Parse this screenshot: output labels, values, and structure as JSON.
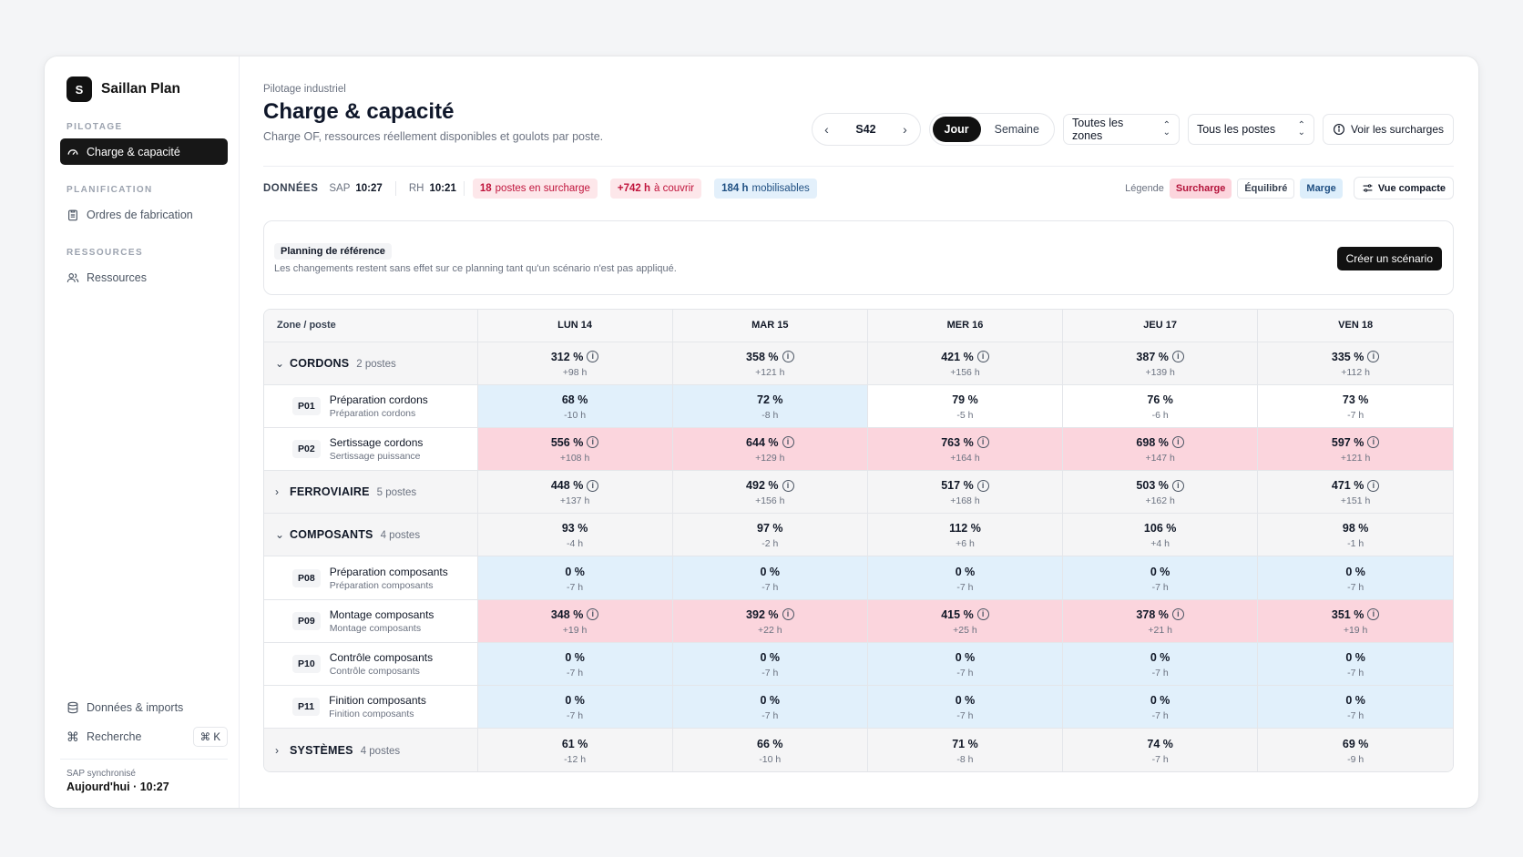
{
  "brand": {
    "logo": "S",
    "name": "Saillan Plan"
  },
  "sidebar": {
    "sections": [
      {
        "title": "PILOTAGE",
        "items": [
          {
            "label": "Charge & capacité",
            "icon": "gauge-icon",
            "active": true
          }
        ]
      },
      {
        "title": "PLANIFICATION",
        "items": [
          {
            "label": "Ordres de fabrication",
            "icon": "clipboard-icon"
          }
        ]
      },
      {
        "title": "RESSOURCES",
        "items": [
          {
            "label": "Ressources",
            "icon": "users-icon"
          }
        ]
      }
    ],
    "bottom": {
      "data_label": "Données & imports",
      "search_label": "Recherche",
      "search_shortcut": "⌘ K",
      "sync_label": "SAP synchronisé",
      "sync_value": "Aujourd'hui · 10:27"
    }
  },
  "header": {
    "breadcrumb": "Pilotage industriel",
    "title": "Charge & capacité",
    "subtitle": "Charge OF, ressources réellement disponibles et goulots par poste."
  },
  "toolbar": {
    "week": "S42",
    "view_day": "Jour",
    "view_week": "Semaine",
    "zones_select": "Toutes les zones",
    "posts_select": "Tous les postes",
    "overloads_button": "Voir les surcharges"
  },
  "infobar": {
    "data_label": "DONNÉES",
    "sap_label": "SAP",
    "sap_time": "10:27",
    "rh_label": "RH",
    "rh_time": "10:21",
    "chip1_num": "18",
    "chip1_text": "postes en surcharge",
    "chip2_num": "+742 h",
    "chip2_text": "à couvrir",
    "chip3_num": "184 h",
    "chip3_text": "mobilisables",
    "legend_label": "Légende",
    "legend_overload": "Surcharge",
    "legend_balanced": "Équilibré",
    "legend_margin": "Marge",
    "compact_button": "Vue compacte"
  },
  "reference": {
    "badge": "Planning de référence",
    "text": "Les changements restent sans effet sur ce planning tant qu'un scénario n'est pas appliqué.",
    "button": "Créer un scénario"
  },
  "table": {
    "zone_header": "Zone / poste",
    "days": [
      "LUN 14",
      "MAR 15",
      "MER 16",
      "JEU 17",
      "VEN 18"
    ],
    "rows": [
      {
        "type": "group",
        "expanded": true,
        "name": "CORDONS",
        "count": "2 postes",
        "cells": [
          [
            "312 %",
            "+98 h",
            "g",
            true
          ],
          [
            "358 %",
            "+121 h",
            "g",
            true
          ],
          [
            "421 %",
            "+156 h",
            "g",
            true
          ],
          [
            "387 %",
            "+139 h",
            "g",
            true
          ],
          [
            "335 %",
            "+112 h",
            "g",
            true
          ]
        ]
      },
      {
        "type": "post",
        "code": "P01",
        "title": "Préparation cordons",
        "sub": "Préparation cordons",
        "cells": [
          [
            "68 %",
            "-10 h",
            "blue",
            false
          ],
          [
            "72 %",
            "-8 h",
            "blue",
            false
          ],
          [
            "79 %",
            "-5 h",
            "white",
            false
          ],
          [
            "76 %",
            "-6 h",
            "white",
            false
          ],
          [
            "73 %",
            "-7 h",
            "white",
            false
          ]
        ]
      },
      {
        "type": "post",
        "code": "P02",
        "title": "Sertissage cordons",
        "sub": "Sertissage puissance",
        "cells": [
          [
            "556 %",
            "+108 h",
            "red",
            true
          ],
          [
            "644 %",
            "+129 h",
            "red",
            true
          ],
          [
            "763 %",
            "+164 h",
            "red",
            true
          ],
          [
            "698 %",
            "+147 h",
            "red",
            true
          ],
          [
            "597 %",
            "+121 h",
            "red",
            true
          ]
        ]
      },
      {
        "type": "group",
        "expanded": false,
        "name": "FERROVIAIRE",
        "count": "5 postes",
        "cells": [
          [
            "448 %",
            "+137 h",
            "g",
            true
          ],
          [
            "492 %",
            "+156 h",
            "g",
            true
          ],
          [
            "517 %",
            "+168 h",
            "g",
            true
          ],
          [
            "503 %",
            "+162 h",
            "g",
            true
          ],
          [
            "471 %",
            "+151 h",
            "g",
            true
          ]
        ]
      },
      {
        "type": "group",
        "expanded": true,
        "name": "COMPOSANTS",
        "count": "4 postes",
        "cells": [
          [
            "93 %",
            "-4 h",
            "g",
            false
          ],
          [
            "97 %",
            "-2 h",
            "g",
            false
          ],
          [
            "112 %",
            "+6 h",
            "g",
            false
          ],
          [
            "106 %",
            "+4 h",
            "g",
            false
          ],
          [
            "98 %",
            "-1 h",
            "g",
            false
          ]
        ]
      },
      {
        "type": "post",
        "code": "P08",
        "title": "Préparation composants",
        "sub": "Préparation composants",
        "cells": [
          [
            "0 %",
            "-7 h",
            "blue",
            false
          ],
          [
            "0 %",
            "-7 h",
            "blue",
            false
          ],
          [
            "0 %",
            "-7 h",
            "blue",
            false
          ],
          [
            "0 %",
            "-7 h",
            "blue",
            false
          ],
          [
            "0 %",
            "-7 h",
            "blue",
            false
          ]
        ]
      },
      {
        "type": "post",
        "code": "P09",
        "title": "Montage composants",
        "sub": "Montage composants",
        "cells": [
          [
            "348 %",
            "+19 h",
            "red",
            true
          ],
          [
            "392 %",
            "+22 h",
            "red",
            true
          ],
          [
            "415 %",
            "+25 h",
            "red",
            true
          ],
          [
            "378 %",
            "+21 h",
            "red",
            true
          ],
          [
            "351 %",
            "+19 h",
            "red",
            true
          ]
        ]
      },
      {
        "type": "post",
        "code": "P10",
        "title": "Contrôle composants",
        "sub": "Contrôle composants",
        "cells": [
          [
            "0 %",
            "-7 h",
            "blue",
            false
          ],
          [
            "0 %",
            "-7 h",
            "blue",
            false
          ],
          [
            "0 %",
            "-7 h",
            "blue",
            false
          ],
          [
            "0 %",
            "-7 h",
            "blue",
            false
          ],
          [
            "0 %",
            "-7 h",
            "blue",
            false
          ]
        ]
      },
      {
        "type": "post",
        "code": "P11",
        "title": "Finition composants",
        "sub": "Finition composants",
        "cells": [
          [
            "0 %",
            "-7 h",
            "blue",
            false
          ],
          [
            "0 %",
            "-7 h",
            "blue",
            false
          ],
          [
            "0 %",
            "-7 h",
            "blue",
            false
          ],
          [
            "0 %",
            "-7 h",
            "blue",
            false
          ],
          [
            "0 %",
            "-7 h",
            "blue",
            false
          ]
        ]
      },
      {
        "type": "group",
        "expanded": false,
        "name": "SYSTÈMES",
        "count": "4 postes",
        "cells": [
          [
            "61 %",
            "-12 h",
            "g",
            false
          ],
          [
            "66 %",
            "-10 h",
            "g",
            false
          ],
          [
            "71 %",
            "-8 h",
            "g",
            false
          ],
          [
            "74 %",
            "-7 h",
            "g",
            false
          ],
          [
            "69 %",
            "-9 h",
            "g",
            false
          ]
        ]
      }
    ]
  }
}
